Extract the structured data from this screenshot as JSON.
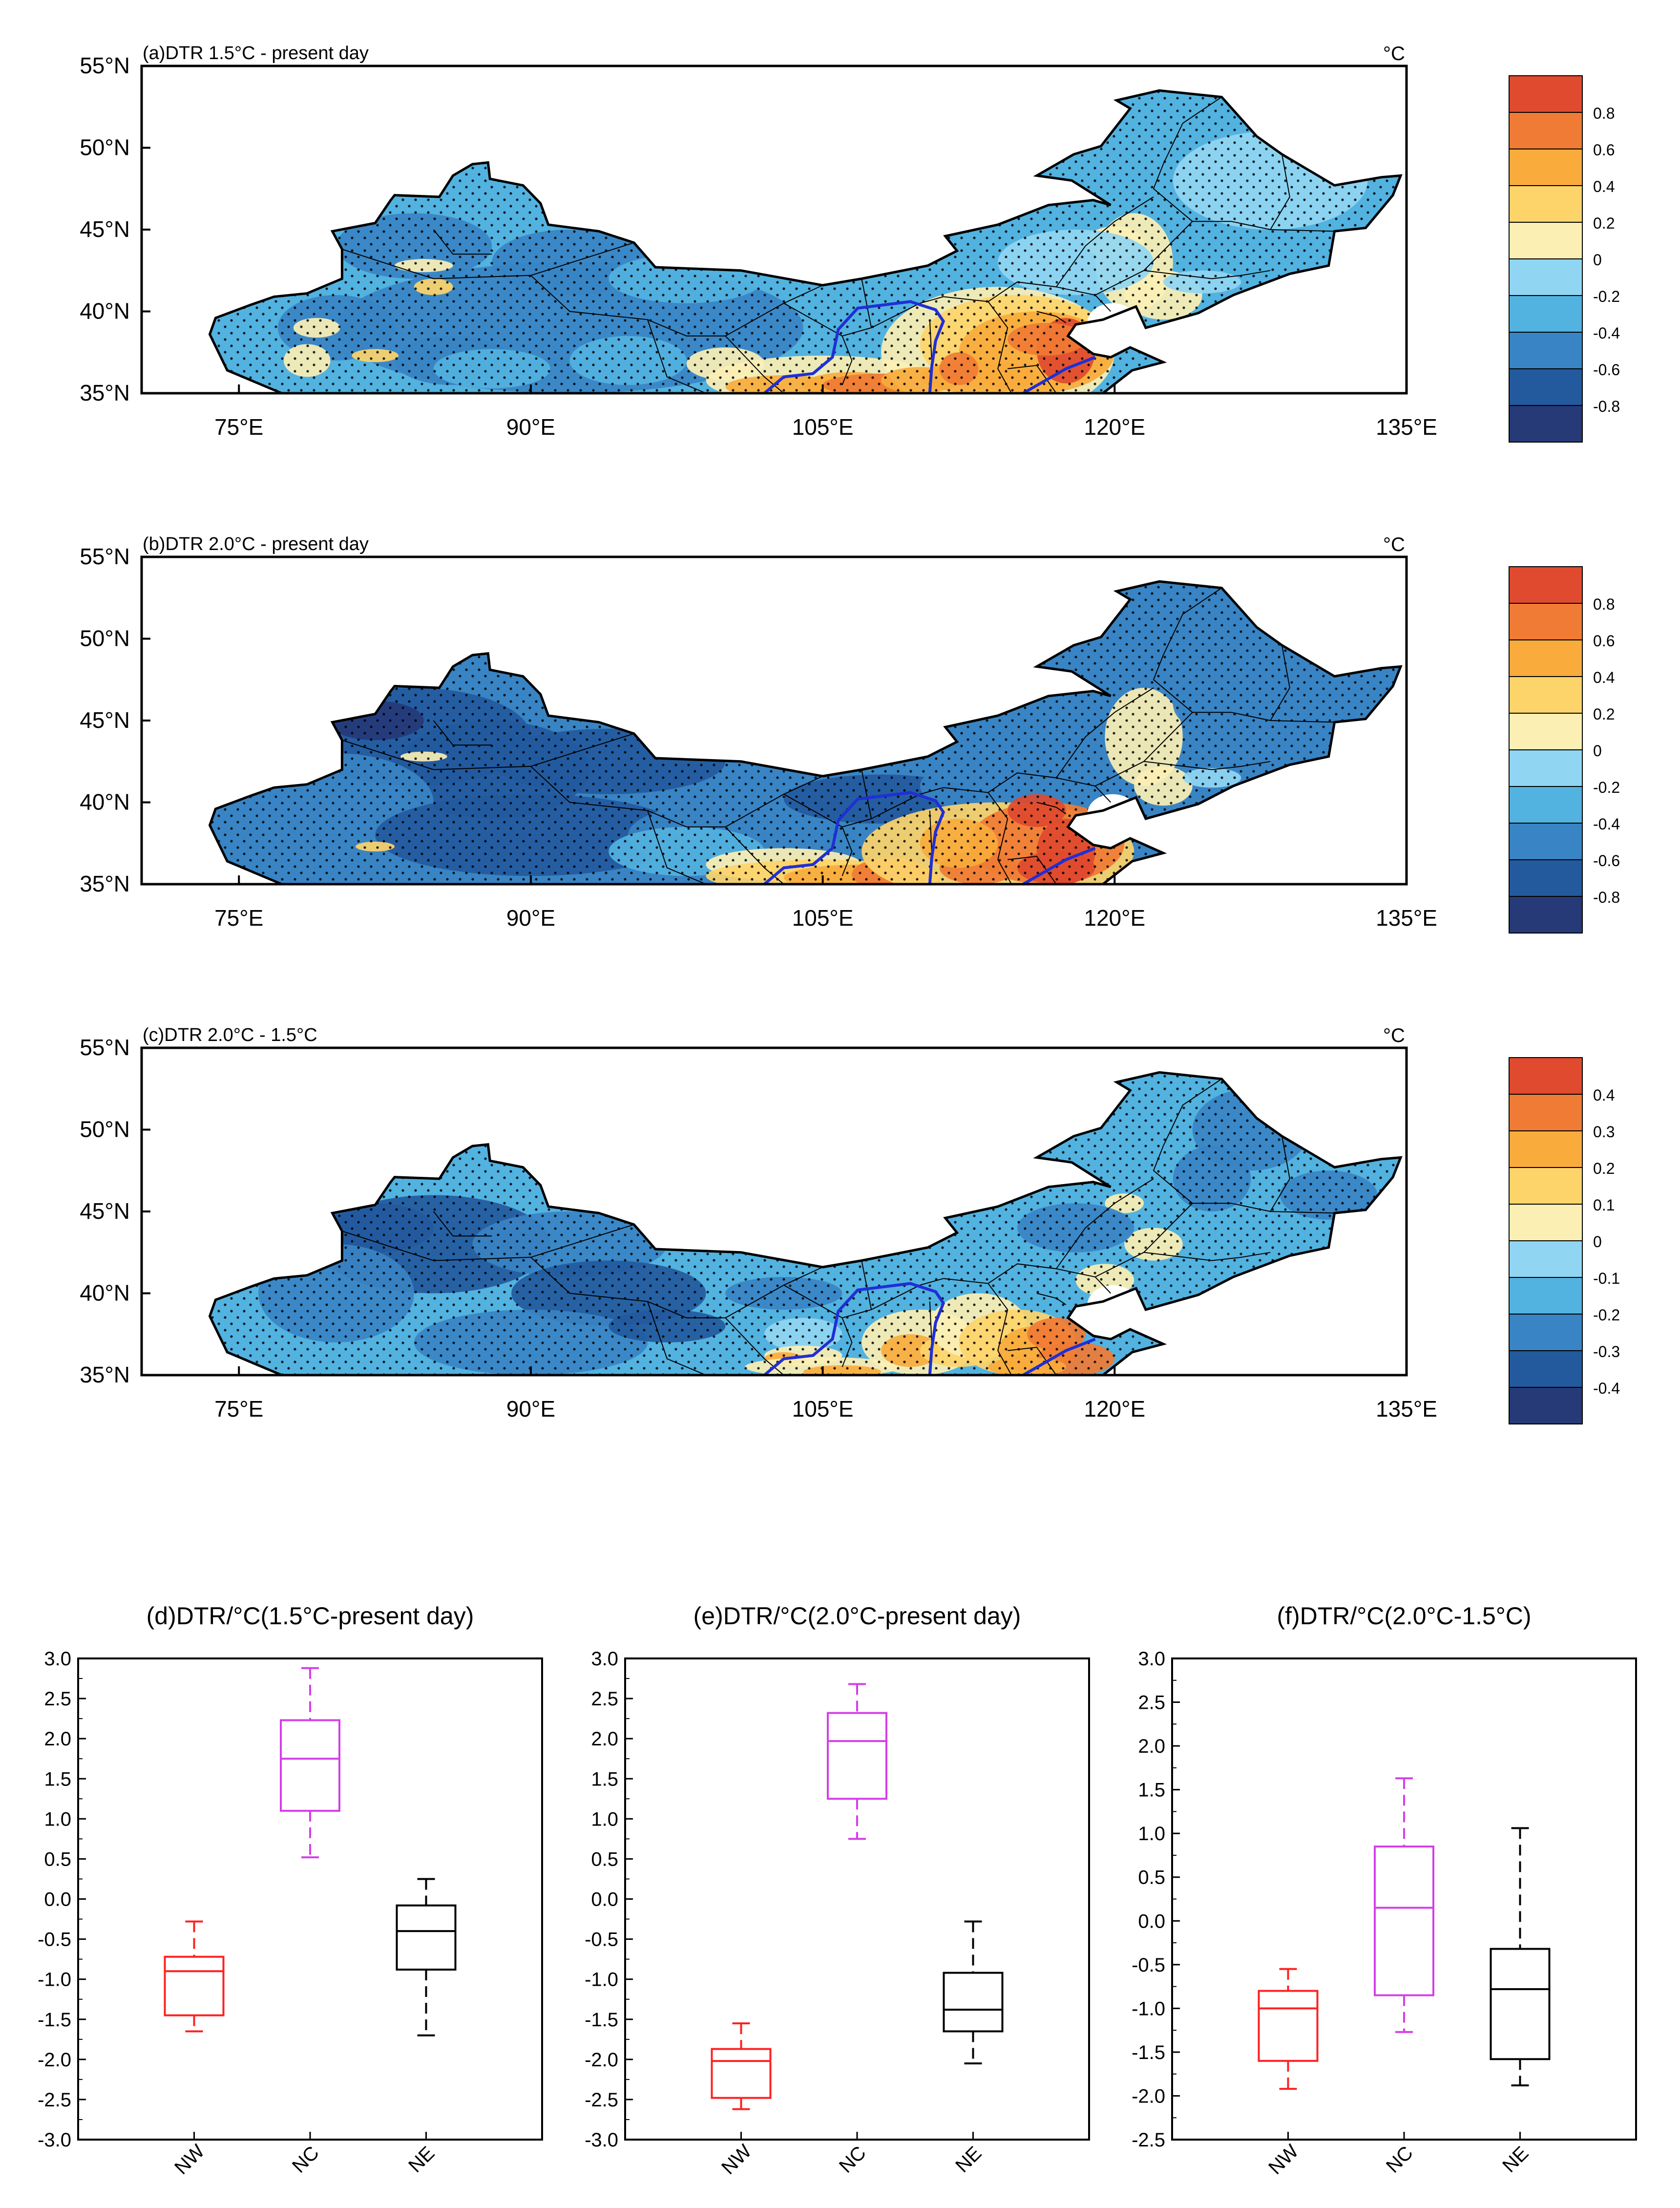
{
  "figure": {
    "map_lon_ticks": [
      "75°E",
      "90°E",
      "105°E",
      "120°E",
      "135°E"
    ],
    "map_lat_ticks": [
      "55°N",
      "50°N",
      "45°N",
      "40°N",
      "35°N"
    ],
    "unit": "°C",
    "colors": {
      "cool": [
        "#263a78",
        "#235a9e",
        "#3884c4",
        "#52b2e0",
        "#90d6f2"
      ],
      "warm": [
        "#fbefb4",
        "#fdd46a",
        "#f9ab3c",
        "#f07b34",
        "#e04a2f"
      ],
      "region_outline": "#1f2fd6"
    }
  },
  "maps": [
    {
      "title": "(a)DTR 1.5°C - present day",
      "colorbar_labels": [
        "0.8",
        "0.6",
        "0.4",
        "0.2",
        "0",
        "-0.2",
        "-0.4",
        "-0.6",
        "-0.8"
      ]
    },
    {
      "title": "(b)DTR 2.0°C - present day",
      "colorbar_labels": [
        "0.8",
        "0.6",
        "0.4",
        "0.2",
        "0",
        "-0.2",
        "-0.4",
        "-0.6",
        "-0.8"
      ]
    },
    {
      "title": "(c)DTR 2.0°C - 1.5°C",
      "colorbar_labels": [
        "0.4",
        "0.3",
        "0.2",
        "0.1",
        "0",
        "-0.1",
        "-0.2",
        "-0.3",
        "-0.4"
      ]
    }
  ],
  "chart_data": [
    {
      "type": "box",
      "title": "(d)DTR/°C(1.5°C-present day)",
      "categories": [
        "NW",
        "NC",
        "NE"
      ],
      "colors": [
        "#ff2020",
        "#d43ee8",
        "#000000"
      ],
      "ylim": [
        -3.0,
        3.0
      ],
      "yticks": [
        "3.0",
        "2.5",
        "2.0",
        "1.5",
        "1.0",
        "0.5",
        "0.0",
        "-0.5",
        "-1.0",
        "-1.5",
        "-2.0",
        "-2.5",
        "-3.0"
      ],
      "boxes": [
        {
          "min": -1.65,
          "q1": -1.45,
          "median": -0.9,
          "q3": -0.72,
          "max": -0.28
        },
        {
          "min": 0.52,
          "q1": 1.1,
          "median": 1.75,
          "q3": 2.23,
          "max": 2.88
        },
        {
          "min": -1.7,
          "q1": -0.88,
          "median": -0.4,
          "q3": -0.08,
          "max": 0.25
        }
      ]
    },
    {
      "type": "box",
      "title": "(e)DTR/°C(2.0°C-present day)",
      "categories": [
        "NW",
        "NC",
        "NE"
      ],
      "colors": [
        "#ff2020",
        "#d43ee8",
        "#000000"
      ],
      "ylim": [
        -3.0,
        3.0
      ],
      "yticks": [
        "3.0",
        "2.5",
        "2.0",
        "1.5",
        "1.0",
        "0.5",
        "0.0",
        "-0.5",
        "-1.0",
        "-1.5",
        "-2.0",
        "-2.5",
        "-3.0"
      ],
      "boxes": [
        {
          "min": -2.62,
          "q1": -2.48,
          "median": -2.02,
          "q3": -1.87,
          "max": -1.55
        },
        {
          "min": 0.75,
          "q1": 1.25,
          "median": 1.97,
          "q3": 2.32,
          "max": 2.68
        },
        {
          "min": -2.05,
          "q1": -1.65,
          "median": -1.38,
          "q3": -0.92,
          "max": -0.28
        }
      ]
    },
    {
      "type": "box",
      "title": "(f)DTR/°C(2.0°C-1.5°C)",
      "categories": [
        "NW",
        "NC",
        "NE"
      ],
      "colors": [
        "#ff2020",
        "#d43ee8",
        "#000000"
      ],
      "ylim": [
        -2.5,
        3.0
      ],
      "yticks": [
        "3.0",
        "2.5",
        "2.0",
        "1.5",
        "1.0",
        "0.5",
        "0.0",
        "-0.5",
        "-1.0",
        "-1.5",
        "-2.0",
        "-2.5"
      ],
      "boxes": [
        {
          "min": -1.92,
          "q1": -1.6,
          "median": -1.0,
          "q3": -0.8,
          "max": -0.55
        },
        {
          "min": -1.27,
          "q1": -0.85,
          "median": 0.15,
          "q3": 0.85,
          "max": 1.63
        },
        {
          "min": -1.88,
          "q1": -1.58,
          "median": -0.78,
          "q3": -0.32,
          "max": 1.06
        }
      ]
    }
  ]
}
